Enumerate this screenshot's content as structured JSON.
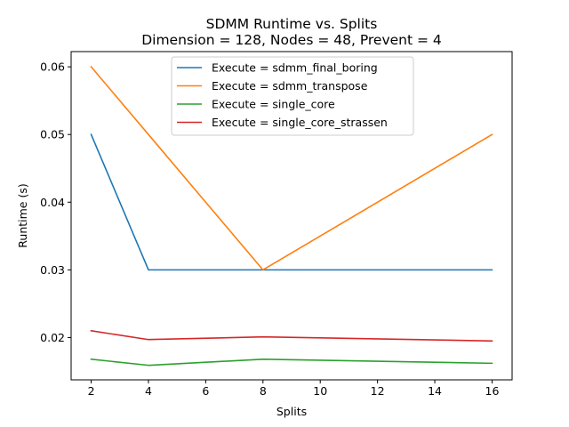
{
  "chart_data": {
    "type": "line",
    "title": "SDMM Runtime vs. Splits",
    "subtitle": "Dimension = 128, Nodes = 48, Prevent = 4",
    "xlabel": "Splits",
    "ylabel": "Runtime (s)",
    "xlim": [
      1.3,
      16.7
    ],
    "ylim": [
      0.01375,
      0.06225
    ],
    "xticks": [
      2,
      4,
      6,
      8,
      10,
      12,
      14,
      16
    ],
    "xtick_labels": [
      "2",
      "4",
      "6",
      "8",
      "10",
      "12",
      "14",
      "16"
    ],
    "yticks": [
      0.02,
      0.03,
      0.04,
      0.05,
      0.06
    ],
    "ytick_labels": [
      "0.02",
      "0.03",
      "0.04",
      "0.05",
      "0.06"
    ],
    "grid": false,
    "legend_position": "top-center",
    "x": [
      2,
      4,
      8,
      16
    ],
    "series": [
      {
        "name": "Execute = sdmm_final_boring",
        "color": "#1f77b4",
        "values": [
          0.05,
          0.03,
          0.03,
          0.03
        ]
      },
      {
        "name": "Execute = sdmm_transpose",
        "color": "#ff7f0e",
        "values": [
          0.06,
          0.05,
          0.03,
          0.05
        ]
      },
      {
        "name": "Execute = single_core",
        "color": "#2ca02c",
        "values": [
          0.0168,
          0.0159,
          0.0168,
          0.0162
        ]
      },
      {
        "name": "Execute = single_core_strassen",
        "color": "#d62728",
        "values": [
          0.021,
          0.0197,
          0.0201,
          0.0195
        ]
      }
    ]
  }
}
